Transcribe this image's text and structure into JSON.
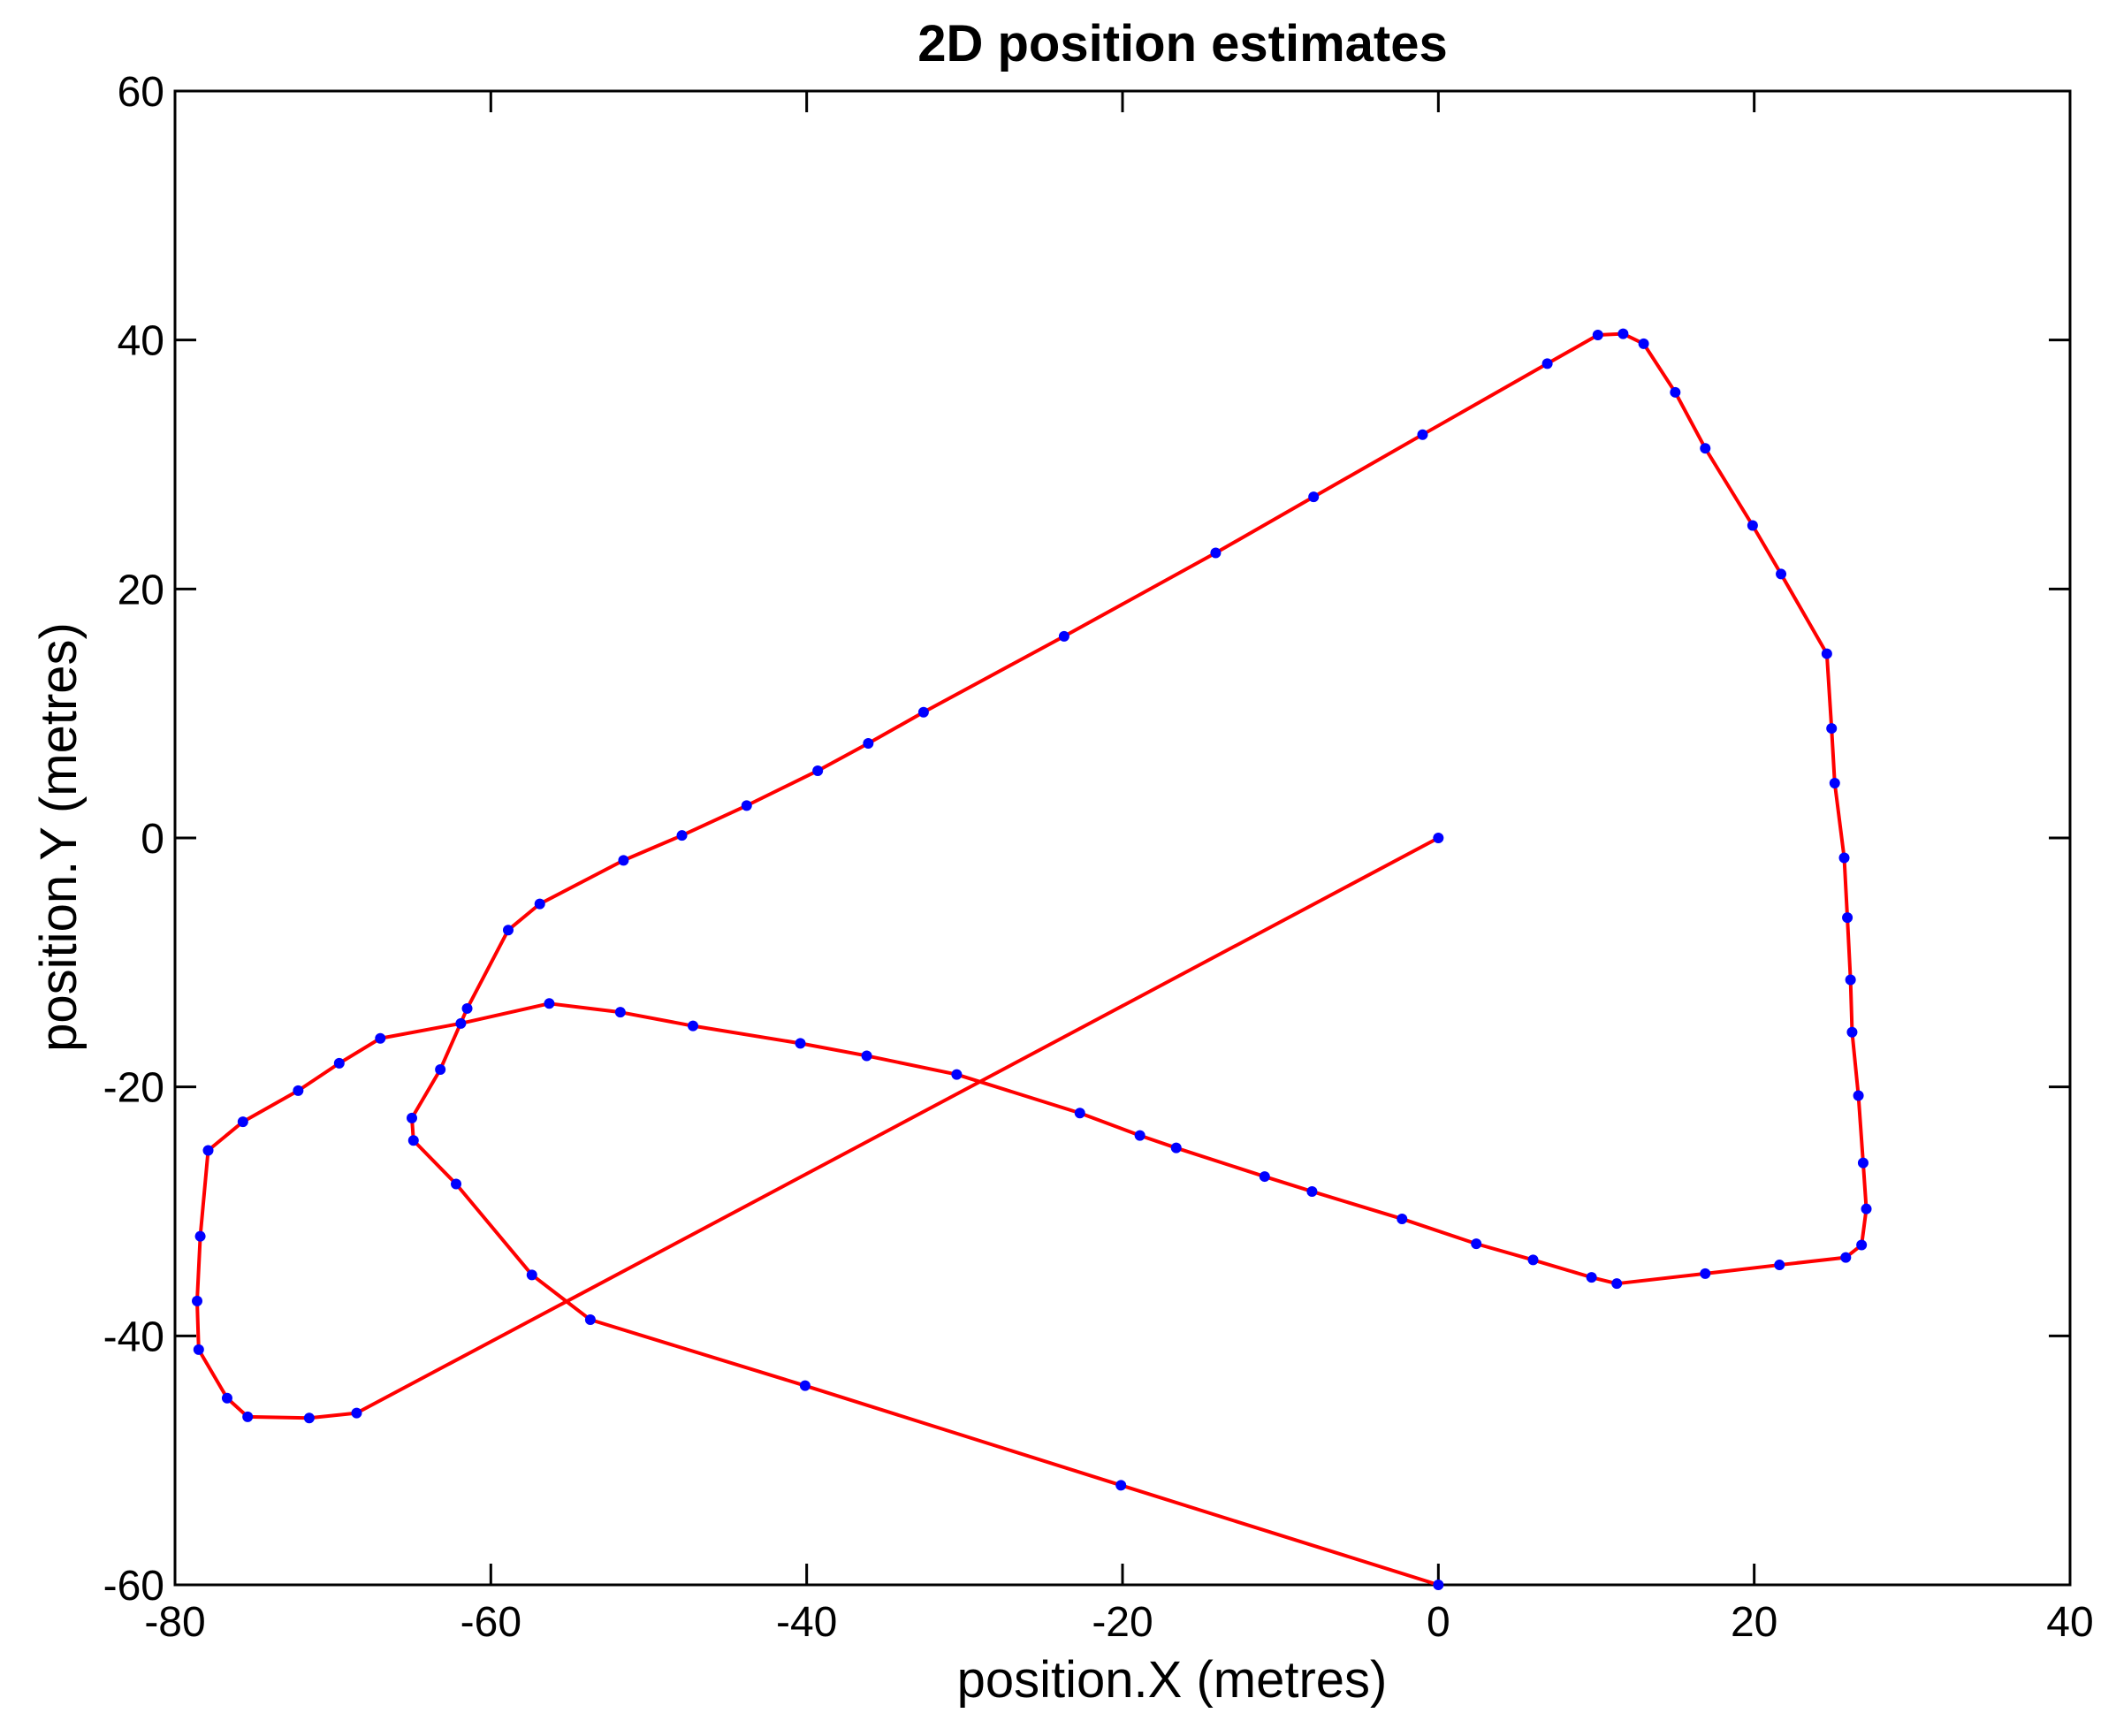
{
  "chart_data": {
    "type": "line",
    "title": "2D position estimates",
    "xlabel": "position.X (metres)",
    "ylabel": "position.Y (metres)",
    "xlim": [
      -80,
      40
    ],
    "ylim": [
      -60,
      60
    ],
    "xticks": [
      -80,
      -60,
      -40,
      -20,
      0,
      20,
      40
    ],
    "yticks": [
      -60,
      -40,
      -20,
      0,
      20,
      40,
      60
    ],
    "grid": false,
    "line_color": "#ff0000",
    "marker_color": "#0000ff",
    "series": [
      {
        "x": [
          0,
          -20.1,
          -40.1,
          -53.7,
          -57.4,
          -62.2,
          -64.9,
          -65.0,
          -63.2,
          -61.5,
          -58.9,
          -56.9,
          -51.6,
          -47.9,
          -43.8,
          -39.3,
          -36.1,
          -32.6,
          -23.7,
          -14.1,
          -7.9,
          -1.0,
          6.9,
          10.1,
          11.7,
          13.0,
          15.0,
          16.9,
          19.9,
          21.7,
          24.6,
          24.9,
          25.1,
          25.7,
          25.9,
          26.1,
          26.2,
          26.6,
          26.9,
          27.1,
          26.8,
          25.8,
          21.6,
          16.9,
          11.3,
          9.7,
          6.0,
          2.4,
          -2.3,
          -8.0,
          -11.0,
          -16.6,
          -18.9,
          -22.7,
          -30.5,
          -36.2,
          -40.4,
          -47.2,
          -51.8,
          -56.3,
          -61.9,
          -67.0,
          -69.6,
          -72.2,
          -75.7,
          -77.9,
          -78.4,
          -78.6,
          -78.5,
          -76.7,
          -75.4,
          -71.5,
          -68.5,
          0
        ],
        "y": [
          -60,
          -52,
          -44,
          -38.7,
          -35.1,
          -27.8,
          -24.3,
          -22.5,
          -18.6,
          -13.7,
          -7.4,
          -5.3,
          -1.8,
          0.2,
          2.6,
          5.4,
          7.6,
          10.1,
          16.2,
          22.9,
          27.4,
          32.4,
          38.1,
          40.4,
          40.5,
          39.7,
          35.8,
          31.3,
          25.1,
          21.2,
          14.8,
          8.8,
          4.4,
          -1.6,
          -6.4,
          -11.4,
          -15.6,
          -20.7,
          -26.1,
          -29.8,
          -32.7,
          -33.7,
          -34.3,
          -35.0,
          -35.8,
          -35.3,
          -33.9,
          -32.6,
          -30.6,
          -28.4,
          -27.2,
          -24.9,
          -23.9,
          -22.1,
          -19.0,
          -17.5,
          -16.5,
          -15.1,
          -14.0,
          -13.3,
          -14.9,
          -16.1,
          -18.1,
          -20.3,
          -22.8,
          -25.1,
          -32.0,
          -37.2,
          -41.1,
          -45.0,
          -46.5,
          -46.6,
          -46.2,
          0
        ]
      }
    ]
  }
}
